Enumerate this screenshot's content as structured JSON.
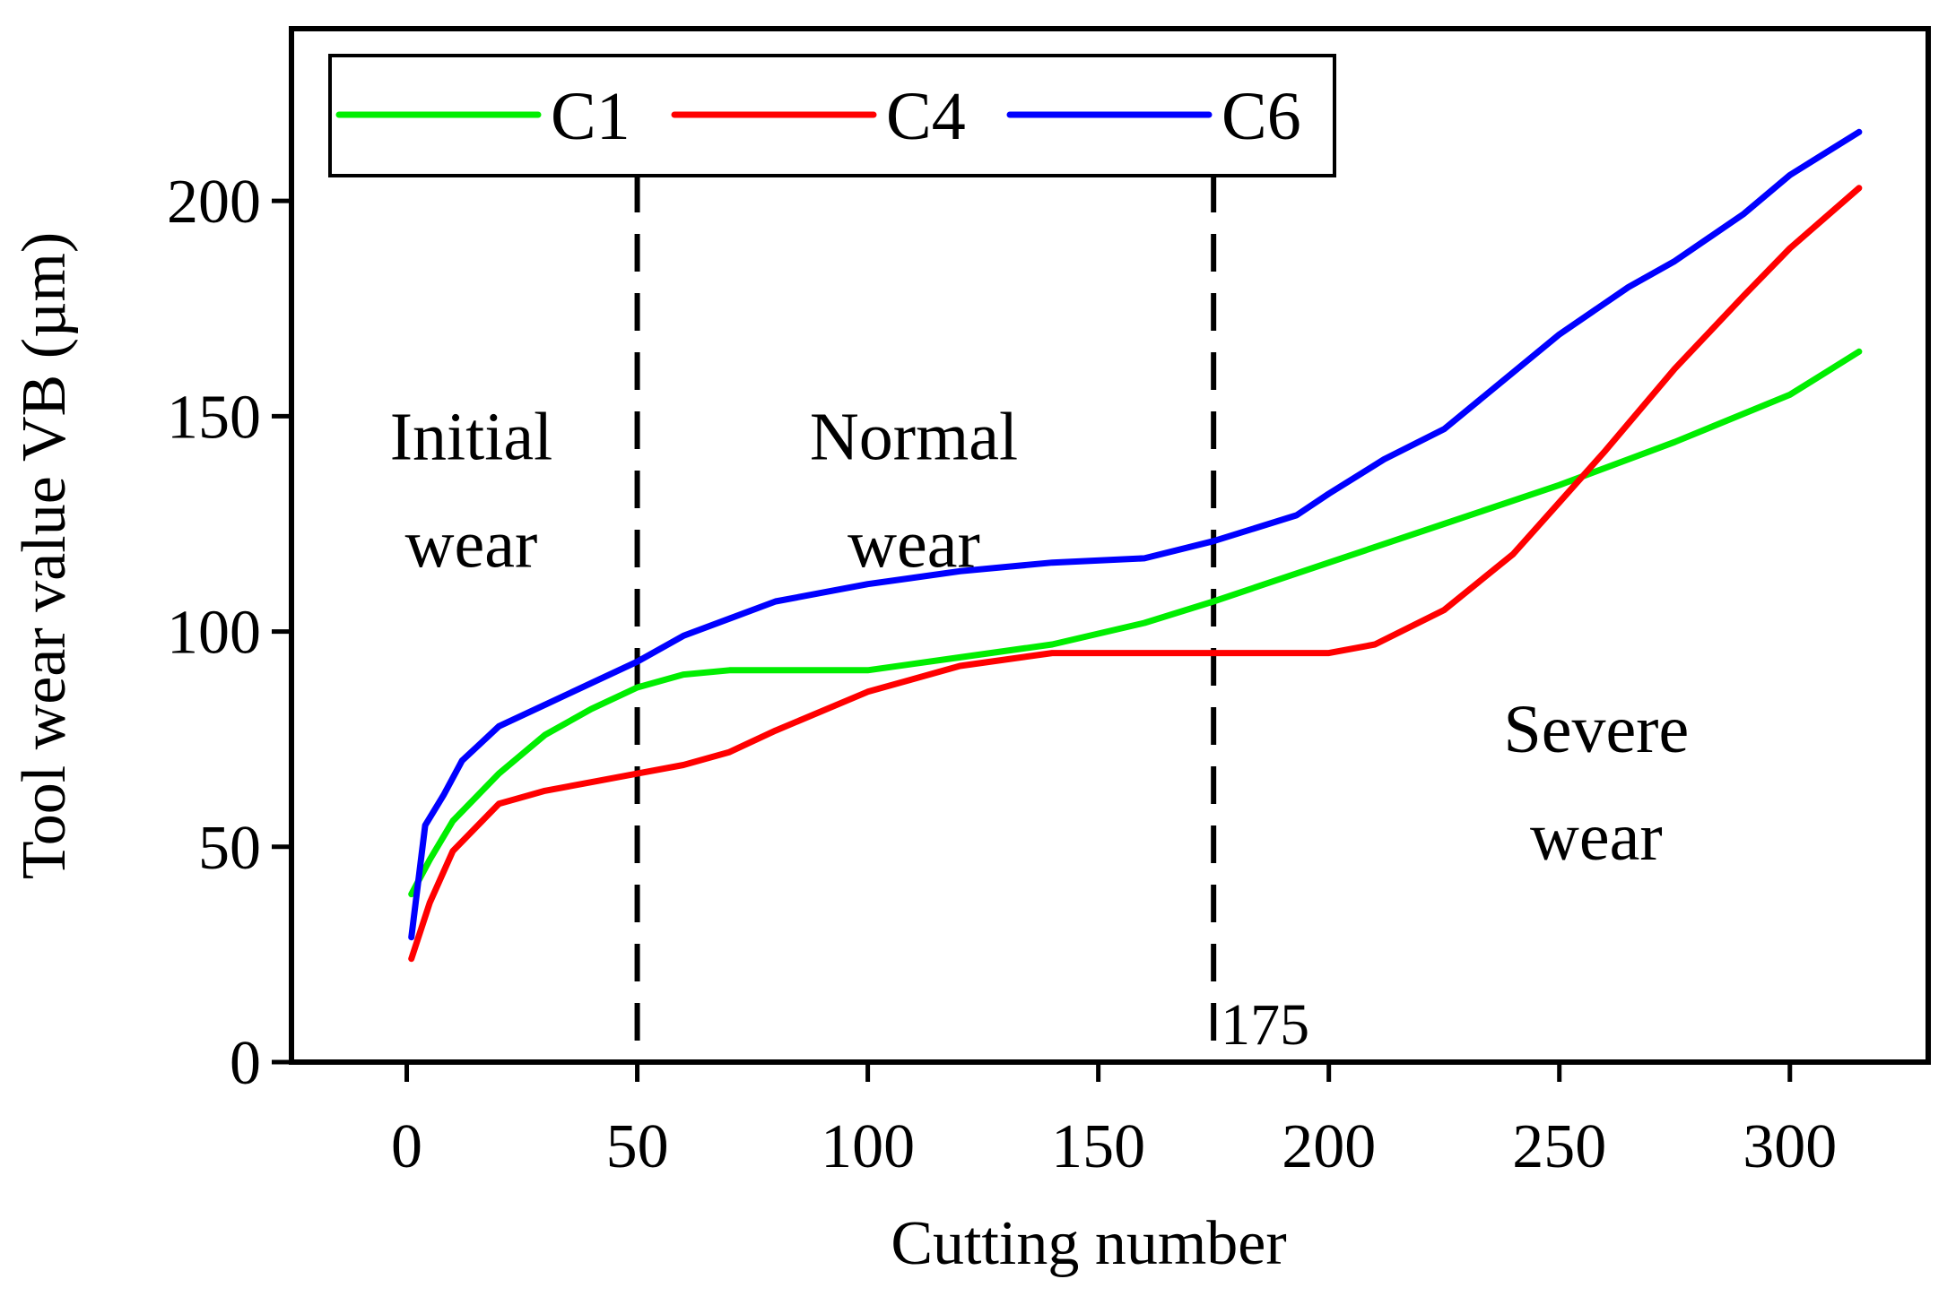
{
  "chart_data": {
    "type": "line",
    "title": "",
    "xlabel": "Cutting number",
    "ylabel": "Tool wear value VB (µm)",
    "xlim": [
      -25,
      330
    ],
    "ylim": [
      0,
      240
    ],
    "xticks": [
      0,
      50,
      100,
      150,
      200,
      250,
      300
    ],
    "yticks": [
      0,
      50,
      100,
      150,
      200
    ],
    "grid": false,
    "legend_position": "top-left",
    "series": [
      {
        "name": "C1",
        "color": "#00ee00",
        "x": [
          1,
          5,
          10,
          20,
          30,
          40,
          50,
          60,
          70,
          80,
          100,
          120,
          140,
          160,
          175,
          200,
          225,
          250,
          275,
          300,
          315
        ],
        "y": [
          39,
          47,
          56,
          67,
          76,
          82,
          87,
          90,
          91,
          91,
          91,
          94,
          97,
          102,
          107,
          116,
          125,
          134,
          144,
          155,
          165
        ]
      },
      {
        "name": "C4",
        "color": "#ff0000",
        "x": [
          1,
          5,
          10,
          20,
          30,
          40,
          50,
          60,
          70,
          80,
          100,
          120,
          140,
          160,
          175,
          200,
          210,
          225,
          240,
          250,
          260,
          275,
          290,
          300,
          315
        ],
        "y": [
          24,
          37,
          49,
          60,
          63,
          65,
          67,
          69,
          72,
          77,
          86,
          92,
          95,
          95,
          95,
          95,
          97,
          105,
          118,
          130,
          142,
          161,
          178,
          189,
          203
        ]
      },
      {
        "name": "C6",
        "color": "#0000ff",
        "x": [
          1,
          4,
          8,
          12,
          16,
          20,
          30,
          40,
          50,
          60,
          70,
          80,
          100,
          120,
          140,
          160,
          175,
          193,
          200,
          212,
          225,
          250,
          265,
          275,
          290,
          300,
          315
        ],
        "y": [
          29,
          55,
          62,
          70,
          74,
          78,
          83,
          88,
          93,
          99,
          103,
          107,
          111,
          114,
          116,
          117,
          121,
          127,
          132,
          140,
          147,
          169,
          180,
          186,
          197,
          206,
          216
        ]
      }
    ],
    "vlines": [
      {
        "x": 50,
        "label": ""
      },
      {
        "x": 175,
        "label": "175"
      }
    ],
    "annotations": [
      {
        "id": "initial",
        "lines": [
          "Initial",
          "wear"
        ],
        "x": 14,
        "y": 140
      },
      {
        "id": "normal",
        "lines": [
          "Normal",
          "wear"
        ],
        "x": 110,
        "y": 140
      },
      {
        "id": "severe",
        "lines": [
          "Severe",
          "wear"
        ],
        "x": 258,
        "y": 72
      }
    ]
  }
}
